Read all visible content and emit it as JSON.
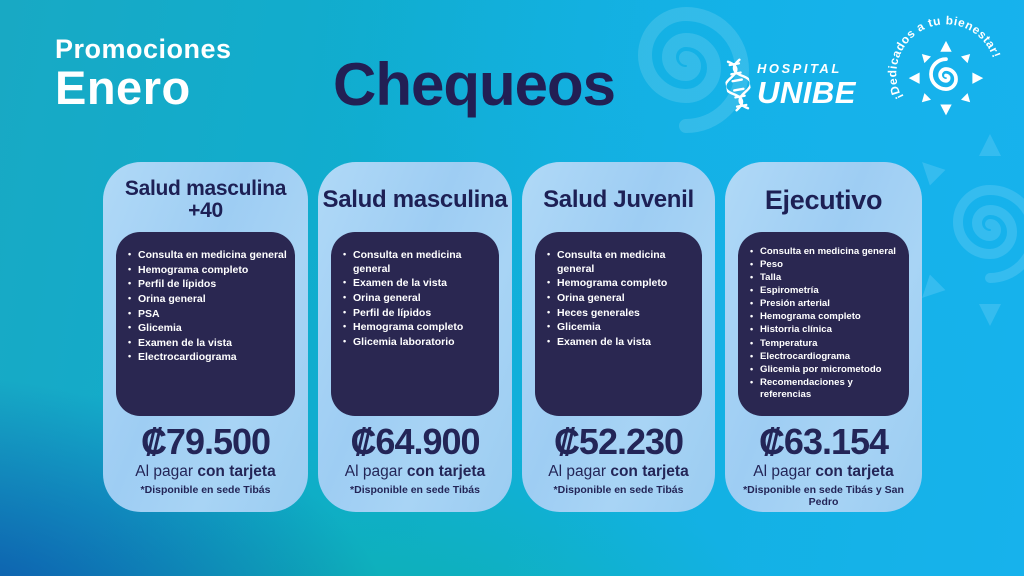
{
  "header": {
    "promo": {
      "line1": "Promociones",
      "line2": "Enero"
    },
    "title": "Chequeos",
    "logo": {
      "icon": "dna-icon",
      "top": "HOSPITAL",
      "name": "UNIBE"
    },
    "badge": {
      "icon": "sun-swirl-icon",
      "text_regular": "¡Dedicados a ",
      "text_bold": "tu bienestar!"
    }
  },
  "cards": [
    {
      "title": "Salud masculina +40",
      "items": [
        "Consulta en medicina general",
        "Hemograma completo",
        "Perfil de lípidos",
        "Orina general",
        "PSA",
        "Glicemia",
        "Examen de la vista",
        "Electrocardiograma"
      ],
      "price": "₡79.500",
      "pay_regular": "Al pagar ",
      "pay_bold": "con tarjeta",
      "note": "*Disponible en sede Tibás"
    },
    {
      "title": "Salud masculina",
      "items": [
        "Consulta en medicina general",
        "Examen de la vista",
        "Orina general",
        "Perfil de lípidos",
        "Hemograma completo",
        "Glicemia laboratorio"
      ],
      "price": "₡64.900",
      "pay_regular": "Al pagar ",
      "pay_bold": "con tarjeta",
      "note": "*Disponible en sede Tibás"
    },
    {
      "title": "Salud Juvenil",
      "items": [
        "Consulta en medicina general",
        "Hemograma completo",
        "Orina general",
        "Heces generales",
        "Glicemia",
        "Examen de la vista"
      ],
      "price": "₡52.230",
      "pay_regular": "Al pagar ",
      "pay_bold": "con tarjeta",
      "note": "*Disponible en sede Tibás"
    },
    {
      "title": "Ejecutivo",
      "items": [
        "Consulta en medicina general",
        "Peso",
        "Talla",
        "Espirometría",
        "Presión arterial",
        "Hemograma completo",
        "Historria clínica",
        "Temperatura",
        "Electrocardiograma",
        "Glicemia por micrometodo",
        "Recomendaciones y referencias"
      ],
      "price": "₡63.154",
      "pay_regular": "Al pagar ",
      "pay_bold": "con tarjeta",
      "note": "*Disponible en sede Tibás y San Pedro"
    }
  ],
  "colors": {
    "background_teal": "#18a9c4",
    "background_blue": "#17b2ec",
    "background_deep_blue": "#0a46a6",
    "background_teal_green": "#0bb2a0",
    "card_bg": "#9ecdf3",
    "panel_navy": "#2a2751",
    "heading_navy": "#221f54",
    "text_white": "#ffffff"
  }
}
